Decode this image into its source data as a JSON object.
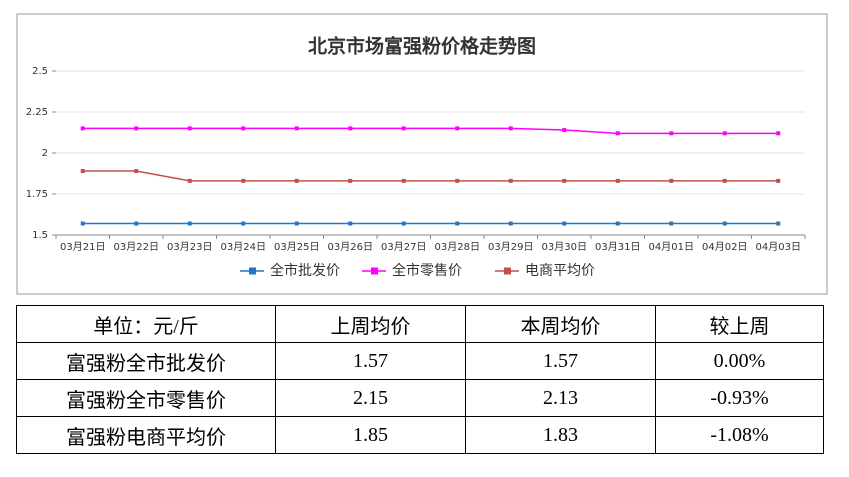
{
  "chart_data": {
    "type": "line",
    "title": "北京市场富强粉价格走势图",
    "categories": [
      "03月21日",
      "03月22日",
      "03月23日",
      "03月24日",
      "03月25日",
      "03月26日",
      "03月27日",
      "03月28日",
      "03月29日",
      "03月30日",
      "03月31日",
      "04月01日",
      "04月02日",
      "04月03日"
    ],
    "series": [
      {
        "name": "全市批发价",
        "color": "#1f77c8",
        "values": [
          1.57,
          1.57,
          1.57,
          1.57,
          1.57,
          1.57,
          1.57,
          1.57,
          1.57,
          1.57,
          1.57,
          1.57,
          1.57,
          1.57
        ]
      },
      {
        "name": "全市零售价",
        "color": "#ff00ff",
        "values": [
          2.15,
          2.15,
          2.15,
          2.15,
          2.15,
          2.15,
          2.15,
          2.15,
          2.15,
          2.14,
          2.12,
          2.12,
          2.12,
          2.12
        ]
      },
      {
        "name": "电商平均价",
        "color": "#c0504d",
        "values": [
          1.89,
          1.89,
          1.83,
          1.83,
          1.83,
          1.83,
          1.83,
          1.83,
          1.83,
          1.83,
          1.83,
          1.83,
          1.83,
          1.83
        ]
      }
    ],
    "ylim": [
      1.5,
      2.5
    ],
    "yticks": [
      1.5,
      1.75,
      2,
      2.25,
      2.5
    ],
    "grid": true,
    "legend": "bottom"
  },
  "table": {
    "header": [
      "单位：元/斤",
      "上周均价",
      "本周均价",
      "较上周"
    ],
    "rows": [
      [
        "富强粉全市批发价",
        "1.57",
        "1.57",
        "0.00%"
      ],
      [
        "富强粉全市零售价",
        "2.15",
        "2.13",
        "-0.93%"
      ],
      [
        "富强粉电商平均价",
        "1.85",
        "1.83",
        "-1.08%"
      ]
    ]
  }
}
